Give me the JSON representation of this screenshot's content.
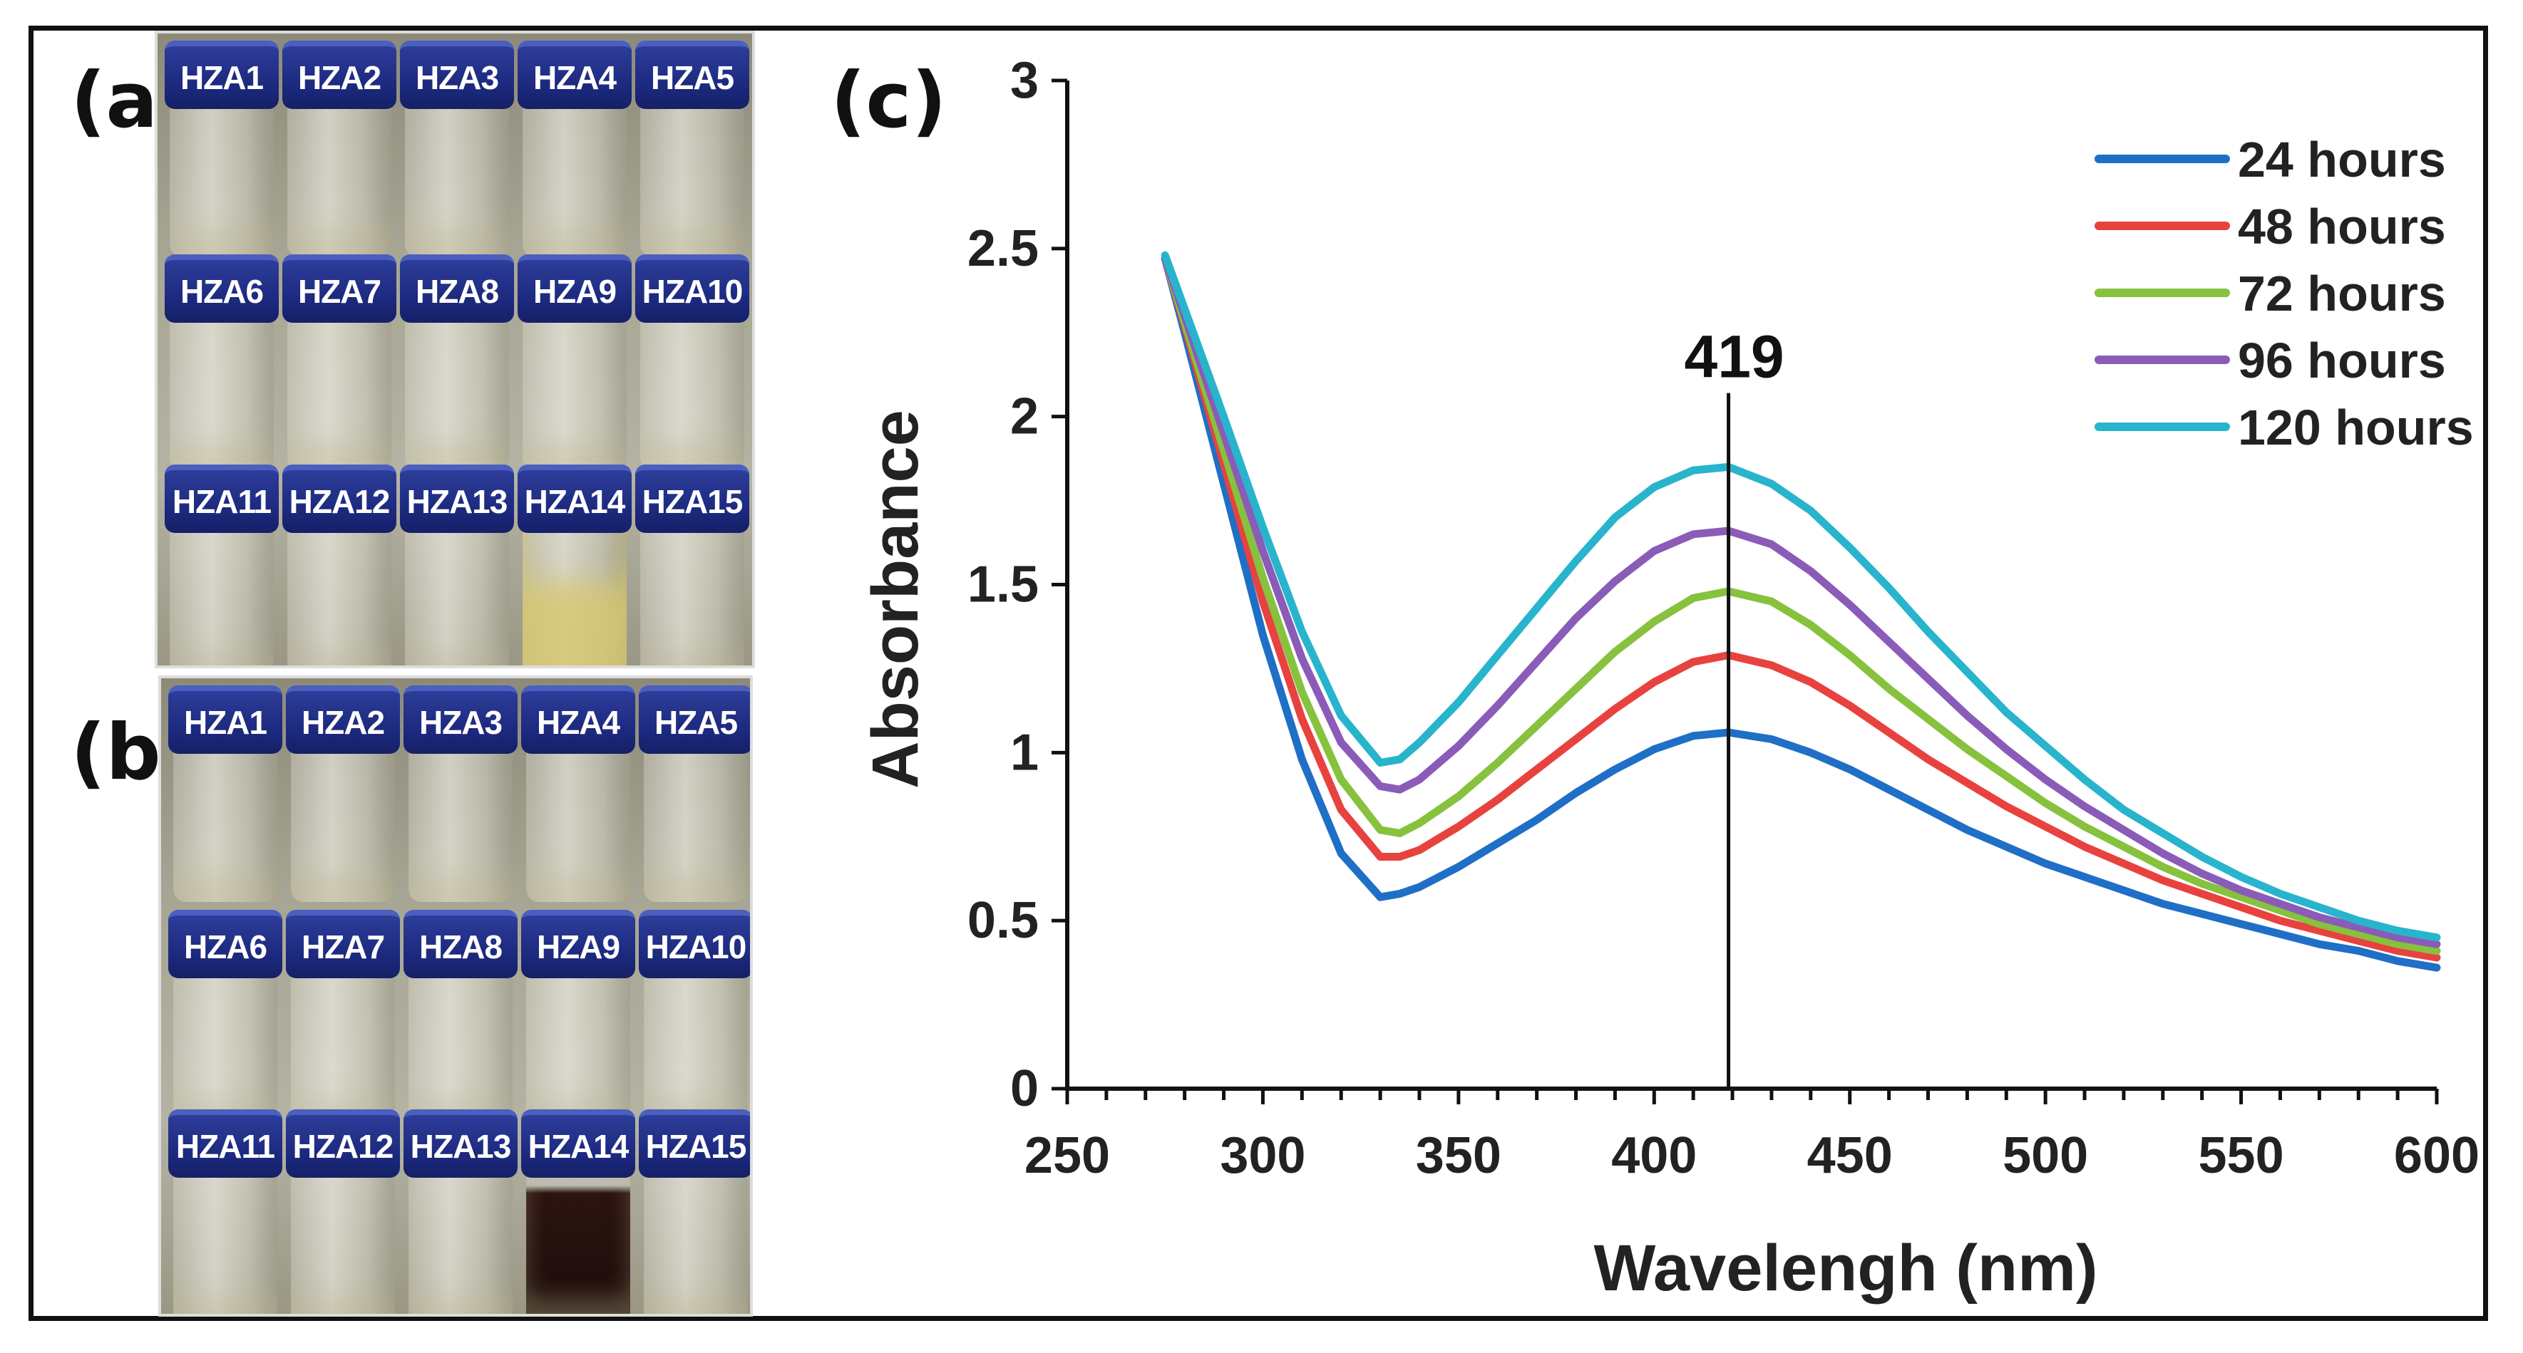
{
  "panels": {
    "a": {
      "label": "(a)",
      "bottles": [
        "HZA1",
        "HZA2",
        "HZA3",
        "HZA4",
        "HZA5",
        "HZA6",
        "HZA7",
        "HZA8",
        "HZA9",
        "HZA10",
        "HZA11",
        "HZA12",
        "HZA13",
        "HZA14",
        "HZA15"
      ]
    },
    "b": {
      "label": "(b)",
      "bottles": [
        "HZA1",
        "HZA2",
        "HZA3",
        "HZA4",
        "HZA5",
        "HZA6",
        "HZA7",
        "HZA8",
        "HZA9",
        "HZA10",
        "HZA11",
        "HZA12",
        "HZA13",
        "HZA14",
        "HZA15"
      ]
    },
    "c": {
      "label": "(c)"
    }
  },
  "chart_data": {
    "type": "line",
    "xlabel": "Wavelengh (nm)",
    "ylabel": "Absorbance",
    "xlim": [
      250,
      600
    ],
    "ylim": [
      0,
      3
    ],
    "xticks": [
      250,
      300,
      350,
      400,
      450,
      500,
      550,
      600
    ],
    "yticks": [
      0,
      0.5,
      1,
      1.5,
      2,
      2.5,
      3
    ],
    "legend_position": "top-right",
    "annotation": {
      "text": "419",
      "x": 419
    },
    "x": [
      275,
      280,
      290,
      300,
      310,
      320,
      330,
      335,
      340,
      350,
      360,
      370,
      380,
      390,
      400,
      410,
      419,
      430,
      440,
      450,
      460,
      470,
      480,
      490,
      500,
      510,
      520,
      530,
      540,
      550,
      560,
      570,
      580,
      590,
      600
    ],
    "series": [
      {
        "name": "24 hours",
        "color": "#1f6fc6",
        "values": [
          2.47,
          2.25,
          1.8,
          1.35,
          0.98,
          0.7,
          0.57,
          0.58,
          0.6,
          0.66,
          0.73,
          0.8,
          0.88,
          0.95,
          1.01,
          1.05,
          1.06,
          1.04,
          1.0,
          0.95,
          0.89,
          0.83,
          0.77,
          0.72,
          0.67,
          0.63,
          0.59,
          0.55,
          0.52,
          0.49,
          0.46,
          0.43,
          0.41,
          0.38,
          0.36
        ]
      },
      {
        "name": "48 hours",
        "color": "#e8423f",
        "values": [
          2.47,
          2.27,
          1.86,
          1.45,
          1.1,
          0.83,
          0.69,
          0.69,
          0.71,
          0.78,
          0.86,
          0.95,
          1.04,
          1.13,
          1.21,
          1.27,
          1.29,
          1.26,
          1.21,
          1.14,
          1.06,
          0.98,
          0.91,
          0.84,
          0.78,
          0.72,
          0.67,
          0.62,
          0.58,
          0.54,
          0.5,
          0.47,
          0.44,
          0.41,
          0.39
        ]
      },
      {
        "name": "72 hours",
        "color": "#86c23e",
        "values": [
          2.47,
          2.28,
          1.9,
          1.52,
          1.18,
          0.92,
          0.77,
          0.76,
          0.79,
          0.87,
          0.97,
          1.08,
          1.19,
          1.3,
          1.39,
          1.46,
          1.48,
          1.45,
          1.38,
          1.29,
          1.19,
          1.1,
          1.01,
          0.93,
          0.85,
          0.78,
          0.72,
          0.66,
          0.61,
          0.57,
          0.53,
          0.49,
          0.46,
          0.43,
          0.41
        ]
      },
      {
        "name": "96 hours",
        "color": "#8b5bb8",
        "values": [
          2.47,
          2.3,
          1.95,
          1.6,
          1.28,
          1.03,
          0.9,
          0.89,
          0.92,
          1.02,
          1.14,
          1.27,
          1.4,
          1.51,
          1.6,
          1.65,
          1.66,
          1.62,
          1.54,
          1.44,
          1.33,
          1.22,
          1.11,
          1.01,
          0.92,
          0.84,
          0.77,
          0.7,
          0.64,
          0.59,
          0.55,
          0.51,
          0.48,
          0.45,
          0.43
        ]
      },
      {
        "name": "120 hours",
        "color": "#28b4cc",
        "values": [
          2.48,
          2.32,
          2.0,
          1.67,
          1.36,
          1.11,
          0.97,
          0.98,
          1.03,
          1.15,
          1.29,
          1.43,
          1.57,
          1.7,
          1.79,
          1.84,
          1.85,
          1.8,
          1.72,
          1.61,
          1.49,
          1.36,
          1.24,
          1.12,
          1.02,
          0.92,
          0.83,
          0.76,
          0.69,
          0.63,
          0.58,
          0.54,
          0.5,
          0.47,
          0.45
        ]
      }
    ]
  }
}
